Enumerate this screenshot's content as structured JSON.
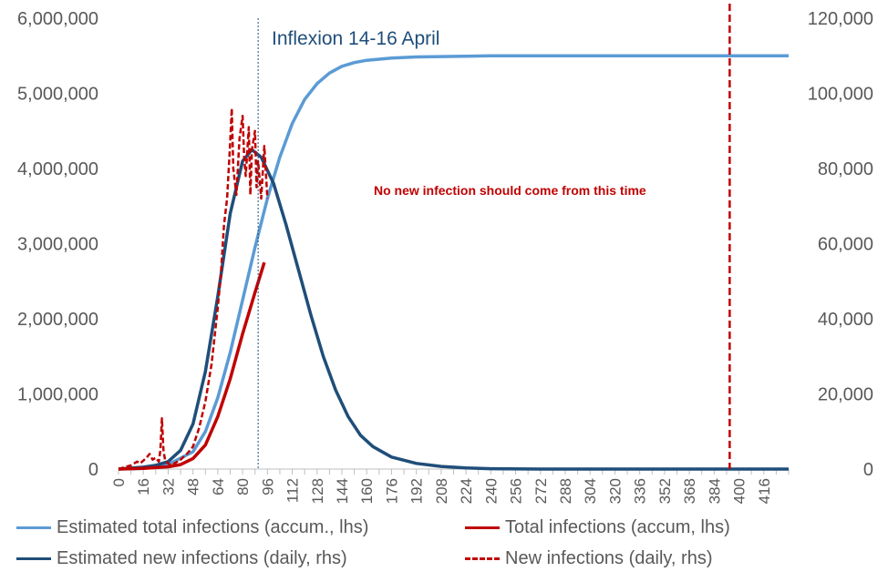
{
  "chart_data": {
    "type": "line",
    "title": "",
    "annotations": {
      "inflexion_label": "Inflexion 14-16 April",
      "cutoff_label": "No new infection should come from this time"
    },
    "inflexion_x": 90,
    "cutoff_x": 394,
    "x_ticks": [
      0,
      16,
      32,
      48,
      64,
      80,
      96,
      112,
      128,
      144,
      160,
      176,
      192,
      208,
      224,
      240,
      256,
      272,
      288,
      304,
      320,
      336,
      352,
      368,
      384,
      400,
      416
    ],
    "xlim": [
      0,
      432
    ],
    "left_axis": {
      "ylim": [
        0,
        6000000
      ],
      "ticks": [
        "0",
        "1,000,000",
        "2,000,000",
        "3,000,000",
        "4,000,000",
        "5,000,000",
        "6,000,000"
      ],
      "tick_values": [
        0,
        1000000,
        2000000,
        3000000,
        4000000,
        5000000,
        6000000
      ]
    },
    "right_axis": {
      "ylim": [
        0,
        120000
      ],
      "ticks": [
        "0",
        "20,000",
        "40,000",
        "60,000",
        "80,000",
        "100,000",
        "120,000"
      ],
      "tick_values": [
        0,
        20000,
        40000,
        60000,
        80000,
        100000,
        120000
      ]
    },
    "series": [
      {
        "name": "Estimated total infections (accum., lhs)",
        "axis": "left",
        "color": "#5b9bd5",
        "style": "solid",
        "points": [
          [
            0,
            0
          ],
          [
            16,
            8000
          ],
          [
            32,
            60000
          ],
          [
            48,
            230000
          ],
          [
            56,
            500000
          ],
          [
            64,
            950000
          ],
          [
            72,
            1550000
          ],
          [
            80,
            2250000
          ],
          [
            88,
            2950000
          ],
          [
            96,
            3600000
          ],
          [
            104,
            4150000
          ],
          [
            112,
            4600000
          ],
          [
            120,
            4920000
          ],
          [
            128,
            5130000
          ],
          [
            136,
            5270000
          ],
          [
            144,
            5360000
          ],
          [
            152,
            5410000
          ],
          [
            160,
            5440000
          ],
          [
            176,
            5470000
          ],
          [
            192,
            5485000
          ],
          [
            208,
            5490000
          ],
          [
            224,
            5495000
          ],
          [
            240,
            5500000
          ],
          [
            272,
            5500000
          ],
          [
            320,
            5500000
          ],
          [
            384,
            5500000
          ],
          [
            432,
            5500000
          ]
        ]
      },
      {
        "name": "Total infections (accum, lhs)",
        "axis": "left",
        "color": "#c00000",
        "style": "solid",
        "points": [
          [
            0,
            0
          ],
          [
            16,
            8000
          ],
          [
            24,
            20000
          ],
          [
            32,
            30000
          ],
          [
            40,
            60000
          ],
          [
            48,
            140000
          ],
          [
            56,
            320000
          ],
          [
            64,
            700000
          ],
          [
            72,
            1200000
          ],
          [
            80,
            1800000
          ],
          [
            88,
            2350000
          ],
          [
            94,
            2750000
          ]
        ]
      },
      {
        "name": "Estimated new infections (daily, rhs)",
        "axis": "right",
        "color": "#1f4e79",
        "style": "solid",
        "points": [
          [
            0,
            0
          ],
          [
            16,
            500
          ],
          [
            24,
            1000
          ],
          [
            32,
            2000
          ],
          [
            40,
            5000
          ],
          [
            48,
            12000
          ],
          [
            56,
            26000
          ],
          [
            64,
            46000
          ],
          [
            72,
            68000
          ],
          [
            80,
            82000
          ],
          [
            86,
            85000
          ],
          [
            92,
            83000
          ],
          [
            100,
            76000
          ],
          [
            108,
            65000
          ],
          [
            116,
            53000
          ],
          [
            124,
            41000
          ],
          [
            132,
            30000
          ],
          [
            140,
            21000
          ],
          [
            148,
            14000
          ],
          [
            156,
            9000
          ],
          [
            164,
            6000
          ],
          [
            176,
            3200
          ],
          [
            192,
            1500
          ],
          [
            208,
            700
          ],
          [
            224,
            300
          ],
          [
            240,
            100
          ],
          [
            272,
            0
          ],
          [
            432,
            0
          ]
        ]
      },
      {
        "name": "New infections (daily, rhs)",
        "axis": "right",
        "color": "#c00000",
        "style": "dashed",
        "points": [
          [
            0,
            0
          ],
          [
            4,
            500
          ],
          [
            8,
            1000
          ],
          [
            12,
            2000
          ],
          [
            14,
            1500
          ],
          [
            18,
            3000
          ],
          [
            20,
            4000
          ],
          [
            22,
            2500
          ],
          [
            24,
            3000
          ],
          [
            26,
            2000
          ],
          [
            27,
            5000
          ],
          [
            28,
            13500
          ],
          [
            29,
            5000
          ],
          [
            30,
            2500
          ],
          [
            32,
            1500
          ],
          [
            34,
            1000
          ],
          [
            36,
            1500
          ],
          [
            40,
            2500
          ],
          [
            44,
            4000
          ],
          [
            48,
            6000
          ],
          [
            52,
            11000
          ],
          [
            56,
            18000
          ],
          [
            60,
            28000
          ],
          [
            64,
            43000
          ],
          [
            66,
            52000
          ],
          [
            68,
            65000
          ],
          [
            70,
            72000
          ],
          [
            72,
            87000
          ],
          [
            73,
            96000
          ],
          [
            74,
            80000
          ],
          [
            76,
            73000
          ],
          [
            78,
            88000
          ],
          [
            80,
            94000
          ],
          [
            81,
            83000
          ],
          [
            82,
            78000
          ],
          [
            84,
            91000
          ],
          [
            85,
            73000
          ],
          [
            86,
            85000
          ],
          [
            88,
            90000
          ],
          [
            89,
            75000
          ],
          [
            90,
            82000
          ],
          [
            92,
            72000
          ],
          [
            94,
            86000
          ],
          [
            96,
            72000
          ]
        ]
      }
    ],
    "legend": {
      "placement": "bottom",
      "items": [
        {
          "label": "Estimated total infections (accum., lhs)",
          "color": "#5b9bd5",
          "style": "solid"
        },
        {
          "label": "Total infections (accum, lhs)",
          "color": "#c00000",
          "style": "solid"
        },
        {
          "label": "Estimated new infections (daily, rhs)",
          "color": "#1f4e79",
          "style": "solid"
        },
        {
          "label": "New infections (daily, rhs)",
          "color": "#c00000",
          "style": "dashed"
        }
      ]
    },
    "colors": {
      "inflexion_line": "#1f4e79",
      "cutoff_line": "#c00000",
      "inflexion_text": "#1f4e79",
      "cutoff_text": "#c00000",
      "axis": "#bfbfbf",
      "tick_text": "#595959"
    }
  }
}
